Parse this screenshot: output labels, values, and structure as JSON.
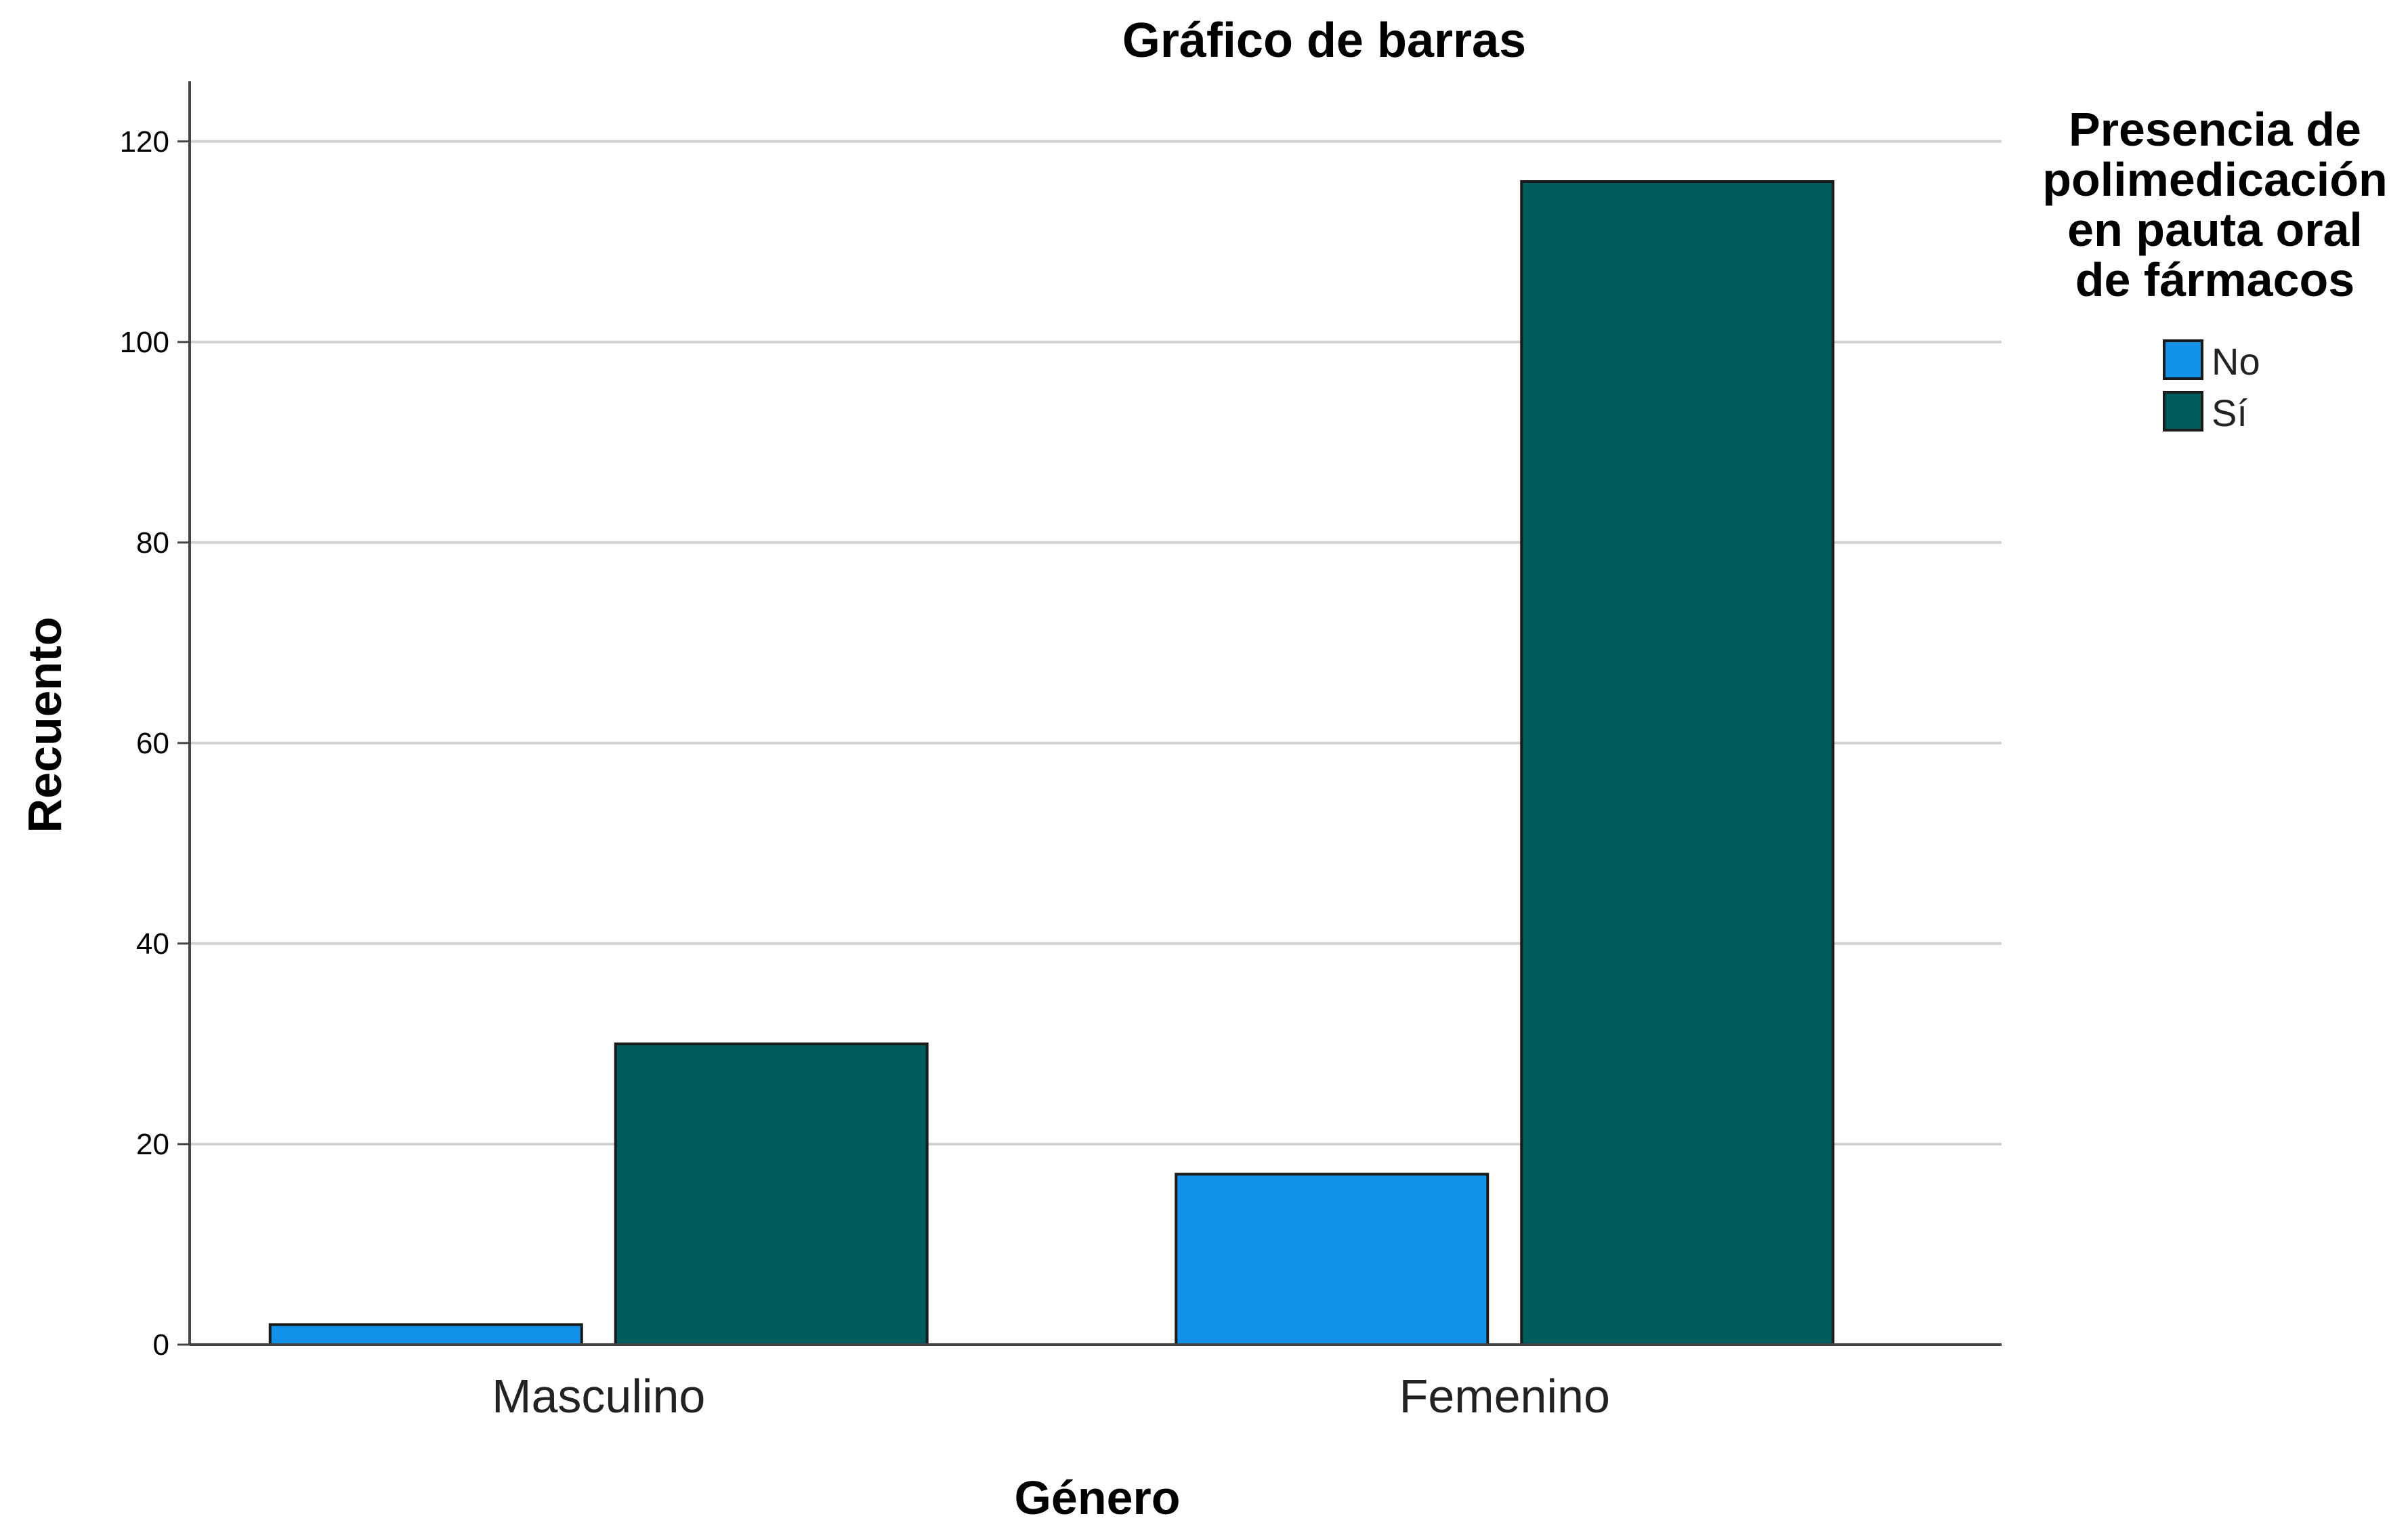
{
  "chart_data": {
    "type": "bar",
    "title": "Gráfico de barras",
    "xlabel": "Género",
    "ylabel": "Recuento",
    "categories": [
      "Masculino",
      "Femenino"
    ],
    "series": [
      {
        "name": "No",
        "values": [
          2,
          17
        ],
        "color": "#1192e8"
      },
      {
        "name": "Sí",
        "values": [
          30,
          116
        ],
        "color": "#005d5d"
      }
    ],
    "ylim": [
      0,
      126
    ],
    "yticks": [
      0,
      20,
      40,
      60,
      80,
      100,
      120
    ],
    "grid": true,
    "legend": {
      "title_lines": [
        "Presencia de",
        "polimedicación",
        "en pauta oral",
        "de fármacos"
      ],
      "placement": "right"
    }
  }
}
